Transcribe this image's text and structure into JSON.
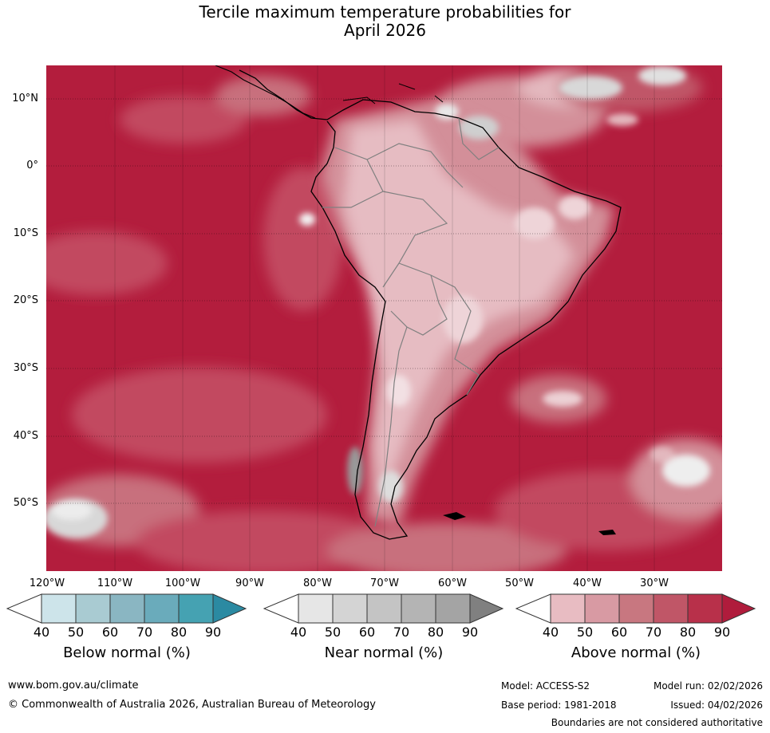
{
  "title_line1": "Tercile maximum temperature probabilities for",
  "title_line2": "April 2026",
  "lat_labels": [
    "10°N",
    "0°",
    "10°S",
    "20°S",
    "30°S",
    "40°S",
    "50°S"
  ],
  "lon_labels": [
    "120°W",
    "110°W",
    "100°W",
    "90°W",
    "80°W",
    "70°W",
    "60°W",
    "50°W",
    "40°W",
    "30°W"
  ],
  "colors": {
    "above": [
      "#ffffff",
      "#e8bcc2",
      "#d89aa3",
      "#c87780",
      "#c05667",
      "#b8304a",
      "#b01c3c"
    ],
    "below": [
      "#ffffff",
      "#cde4ea",
      "#a9cbd2",
      "#8ab6c2",
      "#6aabbb",
      "#45a2b2",
      "#2b8aa2"
    ],
    "near": [
      "#ffffff",
      "#e6e6e6",
      "#d4d4d4",
      "#c4c4c4",
      "#b4b4b4",
      "#a4a4a4",
      "#808080"
    ]
  },
  "colorbars": [
    {
      "label": "Below normal (%)",
      "ticks": [
        "40",
        "50",
        "60",
        "70",
        "80",
        "90"
      ]
    },
    {
      "label": "Near normal (%)",
      "ticks": [
        "40",
        "50",
        "60",
        "70",
        "80",
        "90"
      ]
    },
    {
      "label": "Above normal (%)",
      "ticks": [
        "40",
        "50",
        "60",
        "70",
        "80",
        "90"
      ]
    }
  ],
  "footer": {
    "website": "www.bom.gov.au/climate",
    "copyright": "© Commonwealth of Australia 2026, Australian Bureau of Meteorology",
    "model": "Model: ACCESS-S2",
    "base_period": "Base period: 1981-2018",
    "model_run": "Model run: 02/02/2026",
    "issued": "Issued: 04/02/2026",
    "disclaimer": "Boundaries are not considered authoritative"
  }
}
